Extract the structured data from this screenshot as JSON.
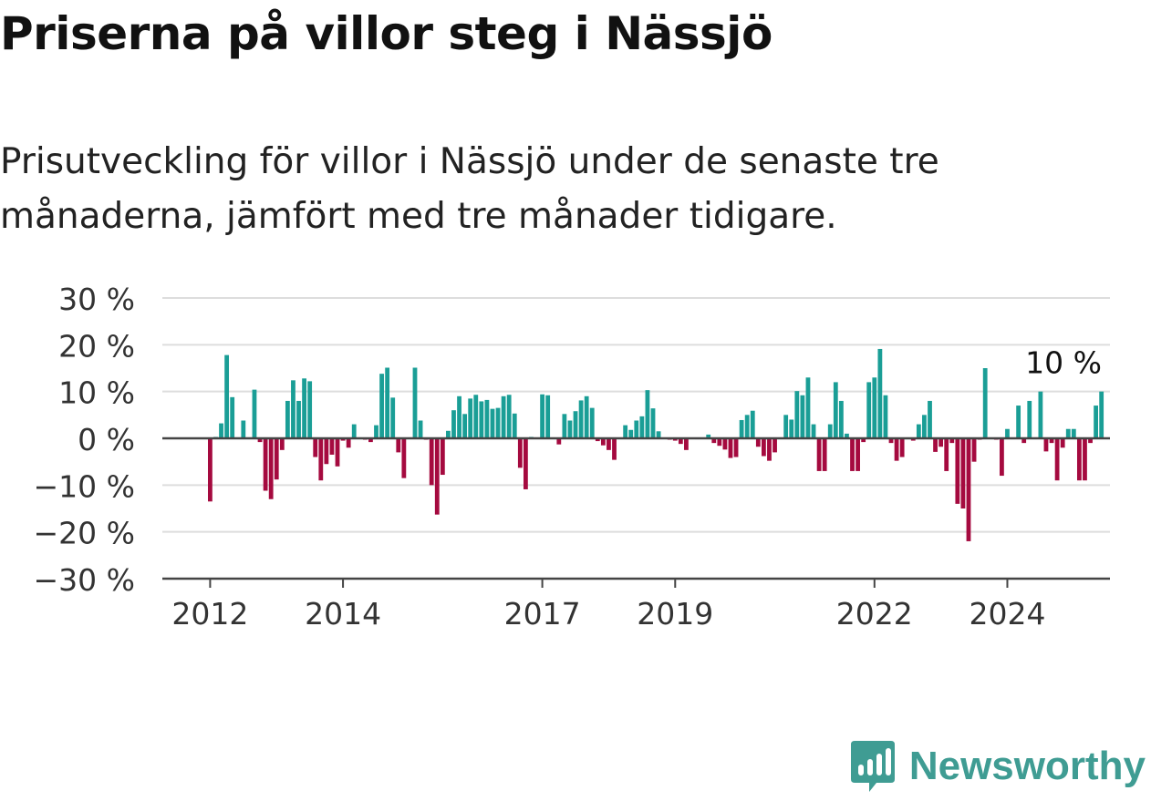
{
  "title": "Priserna på villor steg i Nässjö",
  "subtitle": "Prisutveckling för villor i Nässjö under de senaste tre månaderna, jämfört med tre månader tidigare.",
  "brand": {
    "name": "Newsworthy"
  },
  "colors": {
    "positive": "#1a9e96",
    "negative": "#a50a3f",
    "grid": "#dddddd",
    "axis": "#444444"
  },
  "chart_data": {
    "type": "bar",
    "title": "",
    "xlabel": "",
    "ylabel": "",
    "ylim": [
      -30,
      30
    ],
    "y_ticks": [
      30,
      20,
      10,
      0,
      -10,
      -20,
      -30
    ],
    "y_tick_labels": [
      "30 %",
      "20 %",
      "10 %",
      "0 %",
      "−10 %",
      "−20 %",
      "−30 %"
    ],
    "x_ticks": [
      "2012",
      "2014",
      "2017",
      "2019",
      "2022",
      "2024"
    ],
    "grid": true,
    "last_value_label": "10 %",
    "series": [
      {
        "start": "2012-01",
        "frequency": "monthly",
        "values": [
          -13.5,
          0.3,
          3.2,
          17.8,
          8.8,
          0.2,
          3.8,
          0.2,
          10.4,
          -0.8,
          -11.2,
          -13.0,
          -8.8,
          -2.5,
          8.0,
          12.4,
          8.0,
          12.8,
          12.2,
          -4.0,
          -9.0,
          -5.5,
          -3.5,
          -6.0,
          -0.5,
          -2.0,
          3.0,
          0.2,
          -0.3,
          -0.8,
          2.8,
          13.8,
          15.1,
          8.7,
          -3.0,
          -8.5,
          0.2,
          15.1,
          3.8,
          -0.3,
          -10.0,
          -16.3,
          -7.8,
          1.6,
          6.0,
          9.0,
          5.2,
          8.5,
          9.3,
          7.9,
          8.2,
          6.3,
          6.5,
          9.0,
          9.3,
          5.3,
          -6.3,
          -10.9,
          0.3,
          0.1,
          9.4,
          9.2,
          0.2,
          -1.3,
          5.2,
          3.8,
          5.8,
          8.1,
          9.0,
          6.5,
          -0.6,
          -1.5,
          -2.5,
          -4.6,
          0.1,
          2.8,
          1.8,
          3.8,
          4.7,
          10.3,
          6.4,
          1.5,
          0.1,
          -0.3,
          -0.5,
          -1.2,
          -2.5,
          0.1,
          -0.2,
          0.2,
          0.8,
          -1.0,
          -1.6,
          -2.4,
          -4.2,
          -4.0,
          3.9,
          5.0,
          5.9,
          -1.8,
          -3.8,
          -4.8,
          -3.0,
          0.2,
          5.0,
          4.0,
          10.1,
          9.2,
          13.0,
          3.0,
          -7.0,
          -7.0,
          3.0,
          12.0,
          8.0,
          1.0,
          -7.0,
          -7.0,
          -0.8,
          12.0,
          13.0,
          19.1,
          9.2,
          -1.0,
          -4.8,
          -4.0,
          0.2,
          -0.5,
          3.0,
          5.0,
          8.0,
          -2.9,
          -1.8,
          -7.0,
          -1.0,
          -14.0,
          -15.0,
          -22.0,
          -5.0,
          -0.3,
          15.0,
          0.1,
          -0.3,
          -8.0,
          2.0,
          -0.2,
          7.0,
          -1.0,
          8.0,
          -0.2,
          10.0,
          -2.8,
          -1.0,
          -9.0,
          -2.0,
          2.0,
          2.0,
          -9.0,
          -9.0,
          -1.0,
          7.0,
          10.0
        ]
      }
    ]
  }
}
